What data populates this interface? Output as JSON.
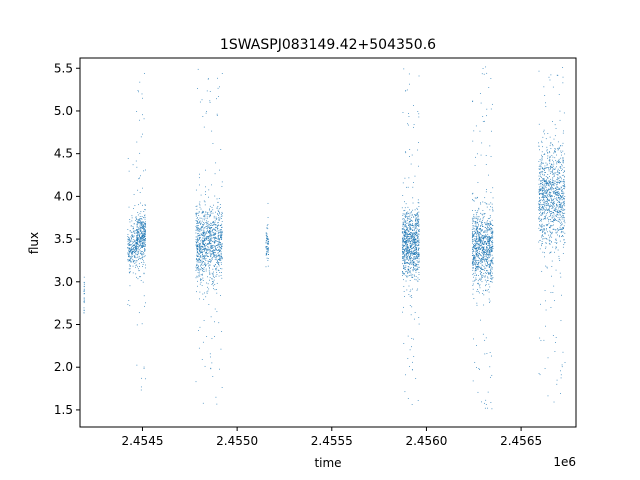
{
  "chart_data": {
    "type": "scatter",
    "title": "1SWASPJ083149.42+504350.6",
    "xlabel": "time",
    "ylabel": "flux",
    "x_offset_label": "1e6",
    "xlim": [
      2454170,
      2456790
    ],
    "ylim": [
      1.3,
      5.62
    ],
    "grid": false,
    "point_color": "#1f77b4",
    "x_ticks": [
      2454500,
      2455000,
      2455500,
      2456000,
      2456500
    ],
    "x_tick_labels": [
      "2.4545",
      "2.4550",
      "2.4555",
      "2.4560",
      "2.4565"
    ],
    "y_ticks": [
      1.5,
      2.0,
      2.5,
      3.0,
      3.5,
      4.0,
      4.5,
      5.0,
      5.5
    ],
    "y_tick_labels": [
      "1.5",
      "2.0",
      "2.5",
      "3.0",
      "3.5",
      "4.0",
      "4.5",
      "5.0",
      "5.5"
    ],
    "series": [
      {
        "observing_seasons": [
          {
            "t_start": 2454189,
            "t_end": 2454191,
            "flux_center": 2.85,
            "flux_spread": 0.15,
            "flux_min": 2.43,
            "flux_max": 3.12
          },
          {
            "t_start": 2454420,
            "t_end": 2454465,
            "flux_center": 3.4,
            "flux_spread": 0.12,
            "flux_min": 2.55,
            "flux_max": 4.8
          },
          {
            "t_start": 2454465,
            "t_end": 2454515,
            "flux_center": 3.52,
            "flux_spread": 0.16,
            "flux_min": 1.55,
            "flux_max": 5.5
          },
          {
            "t_start": 2454780,
            "t_end": 2454920,
            "flux_center": 3.45,
            "flux_spread": 0.22,
            "flux_min": 1.5,
            "flux_max": 5.5
          },
          {
            "t_start": 2455150,
            "t_end": 2455165,
            "flux_center": 3.45,
            "flux_spread": 0.1,
            "flux_min": 3.1,
            "flux_max": 3.95
          },
          {
            "t_start": 2455870,
            "t_end": 2455960,
            "flux_center": 3.45,
            "flux_spread": 0.2,
            "flux_min": 1.52,
            "flux_max": 5.5
          },
          {
            "t_start": 2456240,
            "t_end": 2456350,
            "flux_center": 3.42,
            "flux_spread": 0.22,
            "flux_min": 1.5,
            "flux_max": 5.55
          },
          {
            "t_start": 2456590,
            "t_end": 2456730,
            "flux_center": 4.0,
            "flux_spread": 0.3,
            "flux_min": 1.55,
            "flux_max": 5.55
          }
        ]
      }
    ]
  }
}
